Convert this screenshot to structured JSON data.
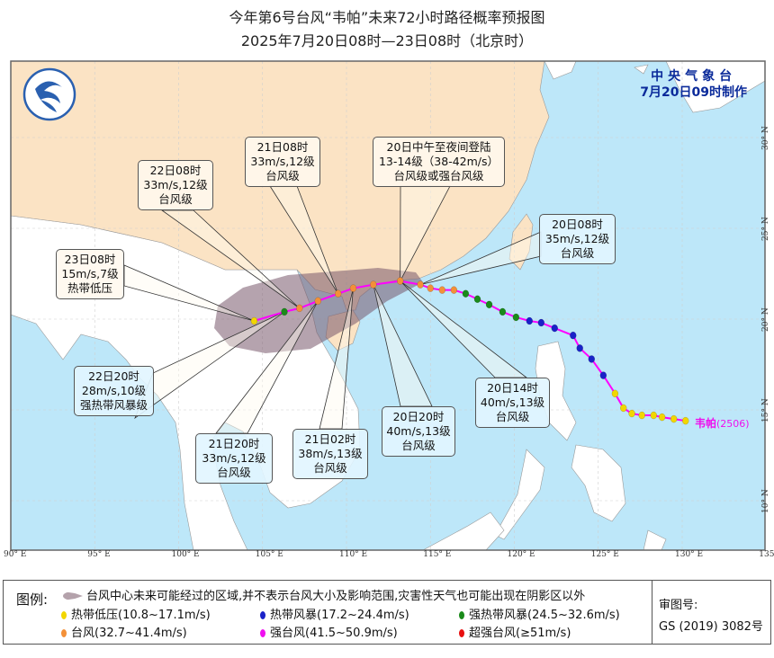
{
  "title": {
    "line1": "今年第6号台风“韦帕”未来72小时路径概率预报图",
    "line2": "2025年7月20日08时—23日08时（北京时）"
  },
  "agency": {
    "name": "中央气象台",
    "issued": "7月20日09时制作"
  },
  "typhoon_label": {
    "name": "韦帕",
    "code": "(2506)"
  },
  "axes": {
    "longitudes": [
      "90° E",
      "95° E",
      "100° E",
      "105° E",
      "110° E",
      "115° E",
      "120° E",
      "125° E",
      "130° E",
      "135° E"
    ],
    "latitudes": [
      "30° N",
      "25° N",
      "20° N",
      "15° N",
      "10° N"
    ]
  },
  "callouts": [
    {
      "id": "c2208",
      "lines": [
        "22日08时",
        "33m/s,12级",
        "台风级"
      ],
      "lon": 107.2,
      "lat": 20.6
    },
    {
      "id": "c2108",
      "lines": [
        "21日08时",
        "33m/s,12级",
        "台风级"
      ],
      "lon": 109.5,
      "lat": 21.4
    },
    {
      "id": "clandfall",
      "lines": [
        "20日中午至夜间登陆",
        "13-14级（38-42m/s）",
        "台风级或强台风级"
      ],
      "lon": 113.2,
      "lat": 22.1
    },
    {
      "id": "c2008",
      "lines": [
        "20日08时",
        "35m/s,12级",
        "台风级"
      ],
      "lon": 114.4,
      "lat": 21.9
    },
    {
      "id": "c2308",
      "lines": [
        "23日08时",
        "15m/s,7级",
        "热带低压"
      ],
      "lon": 104.5,
      "lat": 19.9
    },
    {
      "id": "c2220",
      "lines": [
        "22日20时",
        "28m/s,10级",
        "强热带风暴级"
      ],
      "lon": 106.3,
      "lat": 20.4
    },
    {
      "id": "c2120",
      "lines": [
        "21日20时",
        "33m/s,12级",
        "台风级"
      ],
      "lon": 108.3,
      "lat": 21.0
    },
    {
      "id": "c2102",
      "lines": [
        "21日02时",
        "38m/s,13级",
        "台风级"
      ],
      "lon": 110.4,
      "lat": 21.7
    },
    {
      "id": "c2020",
      "lines": [
        "20日20时",
        "40m/s,13级",
        "台风级"
      ],
      "lon": 111.6,
      "lat": 21.9
    },
    {
      "id": "c2014",
      "lines": [
        "20日14时",
        "40m/s,13级",
        "台风级"
      ],
      "lon": 113.2,
      "lat": 22.1
    }
  ],
  "forecast_track": [
    {
      "lon": 114.4,
      "lat": 21.9,
      "cat": "TY"
    },
    {
      "lon": 113.2,
      "lat": 22.1,
      "cat": "TY"
    },
    {
      "lon": 111.6,
      "lat": 21.9,
      "cat": "TY"
    },
    {
      "lon": 110.4,
      "lat": 21.7,
      "cat": "TY"
    },
    {
      "lon": 109.5,
      "lat": 21.4,
      "cat": "TY"
    },
    {
      "lon": 108.3,
      "lat": 21.0,
      "cat": "TY"
    },
    {
      "lon": 107.2,
      "lat": 20.6,
      "cat": "TY"
    },
    {
      "lon": 106.3,
      "lat": 20.4,
      "cat": "STS"
    },
    {
      "lon": 104.5,
      "lat": 19.9,
      "cat": "TD"
    }
  ],
  "past_track": [
    {
      "lon": 130.2,
      "lat": 14.4,
      "cat": "TD"
    },
    {
      "lon": 129.5,
      "lat": 14.5,
      "cat": "TD"
    },
    {
      "lon": 128.8,
      "lat": 14.6,
      "cat": "TD"
    },
    {
      "lon": 128.3,
      "lat": 14.7,
      "cat": "TD"
    },
    {
      "lon": 127.6,
      "lat": 14.7,
      "cat": "TD"
    },
    {
      "lon": 127.0,
      "lat": 14.8,
      "cat": "TD"
    },
    {
      "lon": 126.5,
      "lat": 15.1,
      "cat": "TD"
    },
    {
      "lon": 126.0,
      "lat": 15.9,
      "cat": "TD"
    },
    {
      "lon": 125.3,
      "lat": 16.9,
      "cat": "TS"
    },
    {
      "lon": 124.6,
      "lat": 17.8,
      "cat": "TS"
    },
    {
      "lon": 123.9,
      "lat": 18.4,
      "cat": "TS"
    },
    {
      "lon": 123.5,
      "lat": 19.1,
      "cat": "TS"
    },
    {
      "lon": 122.4,
      "lat": 19.5,
      "cat": "TS"
    },
    {
      "lon": 121.6,
      "lat": 19.8,
      "cat": "TS"
    },
    {
      "lon": 120.9,
      "lat": 19.9,
      "cat": "TS"
    },
    {
      "lon": 120.1,
      "lat": 20.1,
      "cat": "STS"
    },
    {
      "lon": 119.3,
      "lat": 20.4,
      "cat": "STS"
    },
    {
      "lon": 118.5,
      "lat": 20.8,
      "cat": "STS"
    },
    {
      "lon": 117.8,
      "lat": 21.1,
      "cat": "STS"
    },
    {
      "lon": 117.1,
      "lat": 21.4,
      "cat": "STS"
    },
    {
      "lon": 116.4,
      "lat": 21.6,
      "cat": "TY"
    },
    {
      "lon": 115.7,
      "lat": 21.6,
      "cat": "TY"
    },
    {
      "lon": 115.0,
      "lat": 21.7,
      "cat": "TY"
    },
    {
      "lon": 114.4,
      "lat": 21.9,
      "cat": "TY"
    }
  ],
  "colors": {
    "TD": "#f2d600",
    "TS": "#1a22c8",
    "STS": "#1a8a1a",
    "TY": "#f39038",
    "STY": "#f010f0",
    "SuperTY": "#e81010",
    "track": "#ff00ff",
    "sea": "#bde7f9",
    "china": "#fbe3c4",
    "land": "#ffffff",
    "cone": "#8a6a7a"
  },
  "legend": {
    "title": "图例:",
    "area": "台风中心未来可能经过的区域,并不表示台风大小及影响范围,灾害性天气也可能出现在阴影区以外",
    "items": [
      {
        "cat": "TD",
        "label": "热带低压(10.8~17.1m/s)"
      },
      {
        "cat": "TS",
        "label": "热带风暴(17.2~24.4m/s)"
      },
      {
        "cat": "STS",
        "label": "强热带风暴(24.5~32.6m/s)"
      },
      {
        "cat": "TY",
        "label": "台风(32.7~41.4m/s)"
      },
      {
        "cat": "STY",
        "label": "强台风(41.5~50.9m/s)"
      },
      {
        "cat": "SuperTY",
        "label": "超强台风(≥51m/s)"
      }
    ],
    "review_label": "审图号:",
    "review_no": "GS (2019) 3082号"
  }
}
